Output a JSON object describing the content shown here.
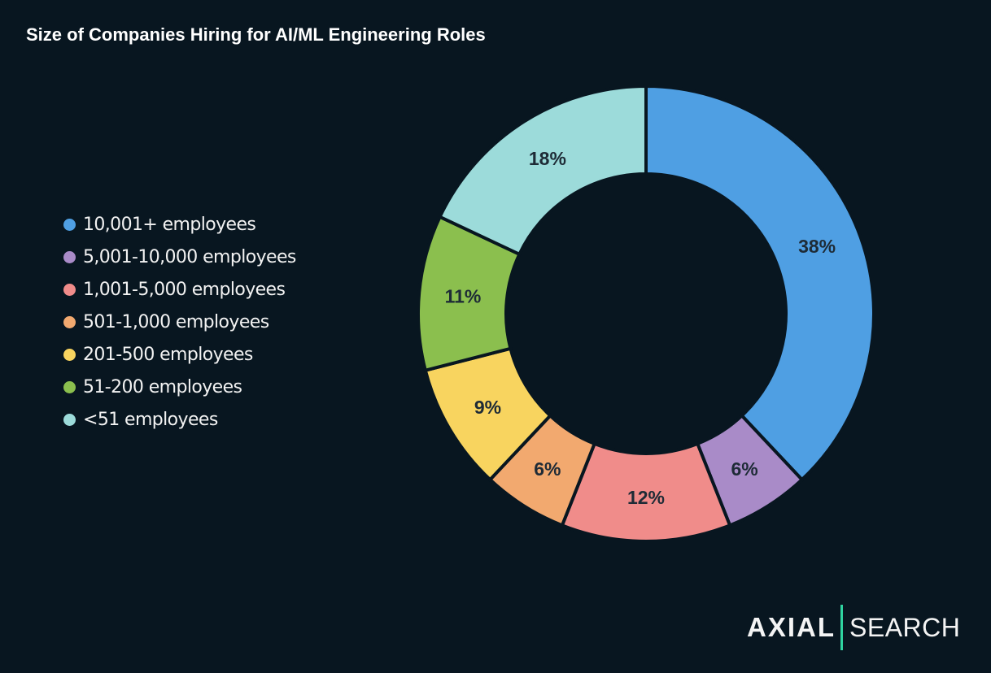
{
  "chart_data": {
    "type": "pie",
    "style": "donut",
    "title": "Size of Companies Hiring for AI/ML Engineering Roles",
    "legend_position": "left",
    "categories": [
      "10,001+ employees",
      "5,001-10,000 employees",
      "1,001-5,000 employees",
      "501-1,000 employees",
      "201-500 employees",
      "51-200 employees",
      "<51 employees"
    ],
    "values": [
      38,
      6,
      12,
      6,
      9,
      11,
      18
    ],
    "labels": [
      "38%",
      "6%",
      "12%",
      "6%",
      "9%",
      "11%",
      "18%"
    ],
    "colors": [
      "#4f9fe3",
      "#a98bc8",
      "#f08c8a",
      "#f2a96f",
      "#f8d45f",
      "#8bbf4e",
      "#9cdbda"
    ]
  },
  "branding": {
    "logo_left": "AXIAL",
    "logo_right": "SEARCH",
    "accent": "#2fd3a0"
  }
}
